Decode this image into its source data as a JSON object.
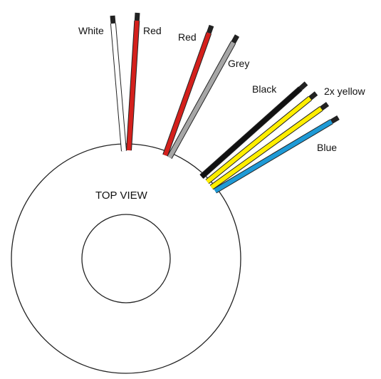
{
  "diagram": {
    "view_label": "TOP VIEW",
    "outline_color": "#222222",
    "wires": [
      {
        "id": "white",
        "label": "White",
        "color": "#ffffff"
      },
      {
        "id": "red1",
        "label": "Red",
        "color": "#d4201c"
      },
      {
        "id": "red2",
        "label": "Red",
        "color": "#d4201c"
      },
      {
        "id": "grey",
        "label": "Grey",
        "color": "#a6a6a6"
      },
      {
        "id": "black",
        "label": "Black",
        "color": "#111111"
      },
      {
        "id": "yellow",
        "label": "2x yellow",
        "color": "#ffee00"
      },
      {
        "id": "blue",
        "label": "Blue",
        "color": "#1e9ad6"
      }
    ]
  }
}
